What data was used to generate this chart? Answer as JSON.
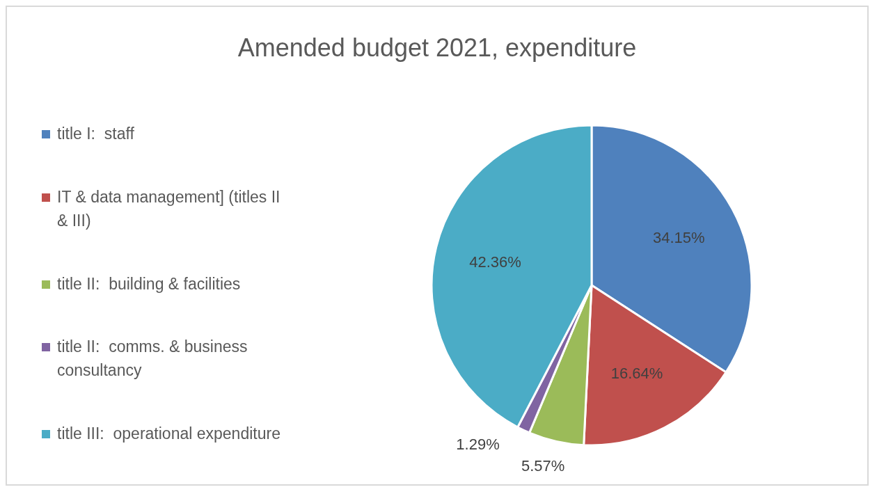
{
  "chart_data": {
    "type": "pie",
    "title": "Amended budget 2021, expenditure",
    "categories": [
      "title I:  staff",
      "IT & data management] (titles II & III)",
      "title II:  building & facilities",
      "title II:  comms. & business consultancy",
      "title III:  operational expenditure"
    ],
    "values": [
      34.15,
      16.64,
      5.57,
      1.29,
      42.36
    ],
    "colors": [
      "#4f81bd",
      "#c0504d",
      "#9bbb59",
      "#8064a2",
      "#4bacc6"
    ],
    "value_labels": [
      "34.15%",
      "16.64%",
      "5.57%",
      "1.29%",
      "42.36%"
    ],
    "legend": "left"
  }
}
